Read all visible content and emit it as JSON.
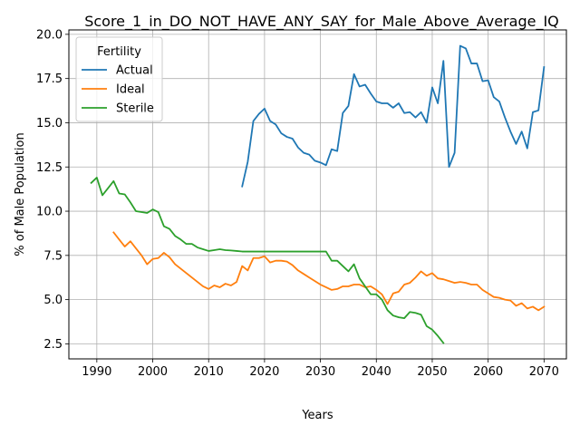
{
  "chart_data": {
    "type": "line",
    "title": "Score_1_in_DO_NOT_HAVE_ANY_SAY_for_Male_Above_Average_IQ",
    "xlabel": "Years",
    "ylabel": "% of Male Population",
    "xlim": [
      1985,
      2074
    ],
    "ylim": [
      1.65,
      20.25
    ],
    "xticks": [
      1990,
      2000,
      2010,
      2020,
      2030,
      2040,
      2050,
      2060,
      2070
    ],
    "yticks": [
      2.5,
      5.0,
      7.5,
      10.0,
      12.5,
      15.0,
      17.5,
      20.0
    ],
    "ytick_labels": [
      "2.5",
      "5.0",
      "7.5",
      "10.0",
      "12.5",
      "15.0",
      "17.5",
      "20.0"
    ],
    "grid": true,
    "legend": {
      "title": "Fertility",
      "placement": "top-left"
    },
    "series": [
      {
        "name": "Actual",
        "color": "#1f77b4",
        "x": [
          2016,
          2017,
          2018,
          2019,
          2020,
          2021,
          2022,
          2023,
          2024,
          2025,
          2026,
          2027,
          2028,
          2029,
          2030,
          2031,
          2032,
          2033,
          2034,
          2035,
          2036,
          2037,
          2038,
          2039,
          2040,
          2041,
          2042,
          2043,
          2044,
          2045,
          2046,
          2047,
          2048,
          2049,
          2050,
          2051,
          2052,
          2053,
          2054,
          2055,
          2056,
          2057,
          2058,
          2059,
          2060,
          2061,
          2062,
          2063,
          2064,
          2065,
          2066,
          2067,
          2068,
          2069,
          2070
        ],
        "y": [
          11.4,
          12.8,
          15.1,
          15.5,
          15.8,
          15.1,
          14.9,
          14.4,
          14.2,
          14.1,
          13.6,
          13.3,
          13.2,
          12.85,
          12.75,
          12.6,
          13.5,
          13.4,
          15.55,
          15.95,
          17.75,
          17.05,
          17.15,
          16.65,
          16.2,
          16.1,
          16.1,
          15.85,
          16.1,
          15.55,
          15.6,
          15.3,
          15.6,
          15.0,
          17.0,
          16.1,
          18.5,
          12.5,
          13.3,
          19.35,
          19.2,
          18.35,
          18.35,
          17.35,
          17.4,
          16.45,
          16.2,
          15.3,
          14.5,
          13.8,
          14.5,
          13.55,
          15.6,
          15.7,
          18.15
        ]
      },
      {
        "name": "Ideal",
        "color": "#ff7f0e",
        "x": [
          1993,
          1994,
          1995,
          1996,
          1997,
          1998,
          1999,
          2000,
          2001,
          2002,
          2003,
          2004,
          2005,
          2006,
          2007,
          2008,
          2009,
          2010,
          2011,
          2012,
          2013,
          2014,
          2015,
          2016,
          2017,
          2018,
          2019,
          2020,
          2021,
          2022,
          2023,
          2024,
          2025,
          2026,
          2027,
          2028,
          2029,
          2030,
          2031,
          2032,
          2033,
          2034,
          2035,
          2036,
          2037,
          2038,
          2039,
          2040,
          2041,
          2042,
          2043,
          2044,
          2045,
          2046,
          2047,
          2048,
          2049,
          2050,
          2051,
          2052,
          2053,
          2054,
          2055,
          2056,
          2057,
          2058,
          2059,
          2060,
          2061,
          2062,
          2063,
          2064,
          2065,
          2066,
          2067,
          2068,
          2069,
          2070
        ],
        "y": [
          8.8,
          8.4,
          8.0,
          8.3,
          7.9,
          7.5,
          7.0,
          7.3,
          7.35,
          7.65,
          7.4,
          7.0,
          6.75,
          6.5,
          6.25,
          6.0,
          5.75,
          5.6,
          5.8,
          5.7,
          5.9,
          5.8,
          6.0,
          6.9,
          6.65,
          7.35,
          7.35,
          7.45,
          7.1,
          7.2,
          7.2,
          7.15,
          6.95,
          6.65,
          6.45,
          6.25,
          6.05,
          5.85,
          5.7,
          5.55,
          5.6,
          5.75,
          5.75,
          5.85,
          5.85,
          5.7,
          5.75,
          5.55,
          5.3,
          4.75,
          5.35,
          5.45,
          5.85,
          5.95,
          6.25,
          6.6,
          6.35,
          6.5,
          6.2,
          6.15,
          6.05,
          5.95,
          6.0,
          5.95,
          5.85,
          5.85,
          5.55,
          5.35,
          5.15,
          5.1,
          5.0,
          4.95,
          4.65,
          4.8,
          4.5,
          4.6,
          4.4,
          4.6
        ]
      },
      {
        "name": "Sterile",
        "color": "#2ca02c",
        "x": [
          1989,
          1990,
          1991,
          1992,
          1993,
          1994,
          1995,
          1996,
          1997,
          1998,
          1999,
          2000,
          2001,
          2002,
          2003,
          2004,
          2005,
          2006,
          2007,
          2008,
          2009,
          2010,
          2011,
          2012,
          2013,
          2014,
          2015,
          2016,
          2017,
          2018,
          2019,
          2020,
          2021,
          2022,
          2023,
          2024,
          2025,
          2026,
          2027,
          2028,
          2029,
          2030,
          2031,
          2032,
          2033,
          2034,
          2035,
          2036,
          2037,
          2038,
          2039,
          2040,
          2041,
          2042,
          2043,
          2044,
          2045,
          2046,
          2047,
          2048,
          2049,
          2050,
          2051,
          2052
        ],
        "y": [
          11.6,
          11.9,
          10.9,
          11.3,
          11.7,
          11.0,
          10.95,
          10.5,
          10.0,
          9.95,
          9.9,
          10.1,
          9.95,
          9.15,
          9.0,
          8.6,
          8.4,
          8.15,
          8.15,
          7.95,
          7.85,
          7.75,
          7.8,
          7.85,
          7.8,
          7.78,
          7.75,
          7.72,
          7.72,
          7.72,
          7.72,
          7.72,
          7.72,
          7.72,
          7.72,
          7.72,
          7.72,
          7.72,
          7.72,
          7.72,
          7.72,
          7.72,
          7.72,
          7.2,
          7.2,
          6.9,
          6.6,
          7.0,
          6.2,
          5.75,
          5.3,
          5.3,
          5.0,
          4.4,
          4.1,
          4.0,
          3.95,
          4.3,
          4.25,
          4.15,
          3.5,
          3.3,
          2.95,
          2.55
        ]
      }
    ]
  }
}
